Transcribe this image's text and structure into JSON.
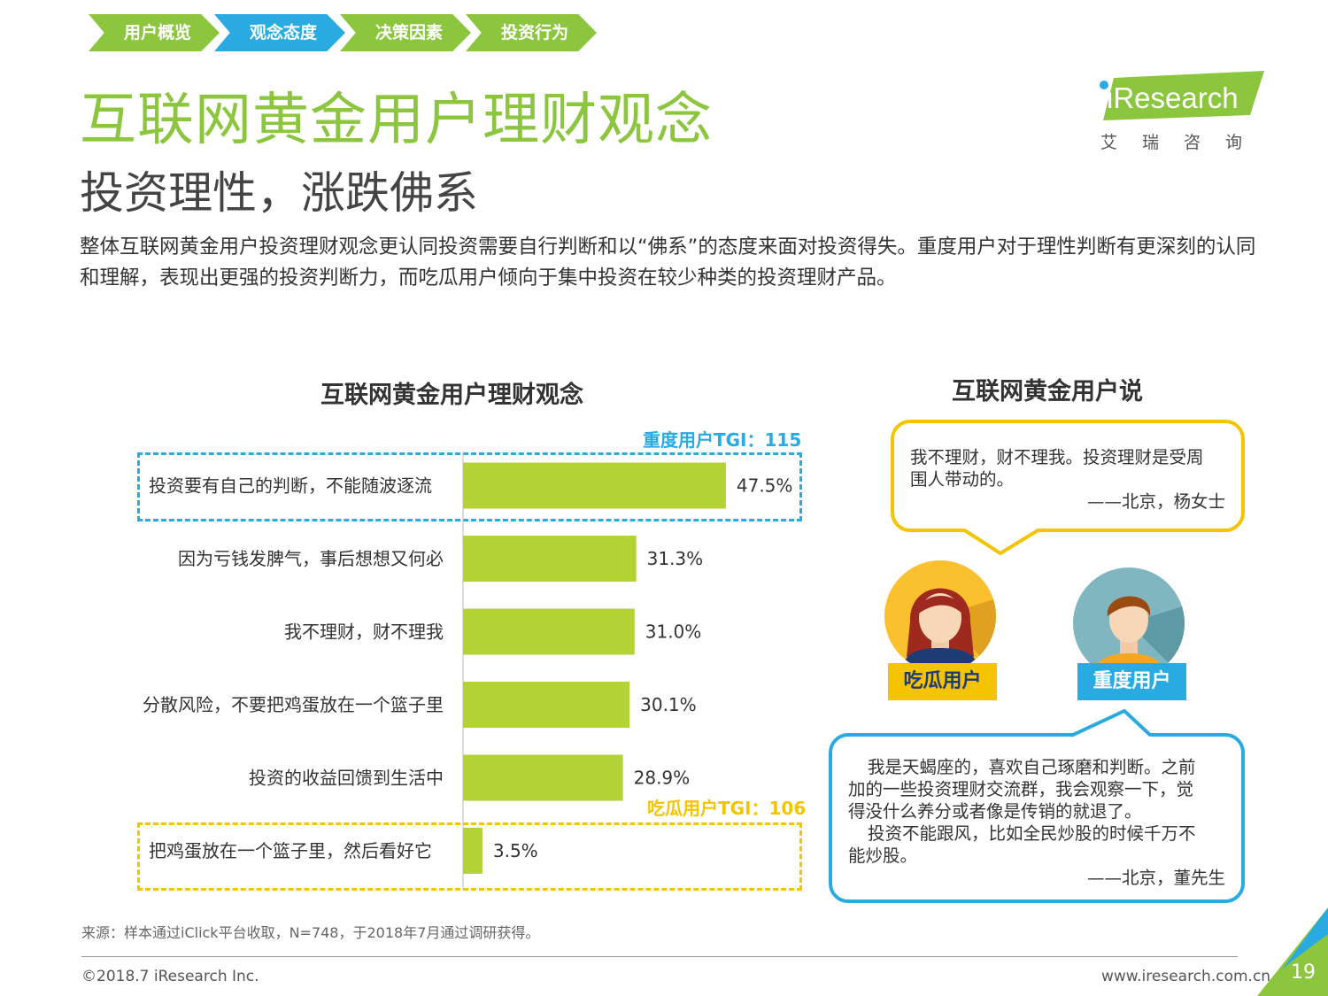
{
  "nav": {
    "tabs": [
      {
        "label": "用户概览",
        "color": "#8cc63f"
      },
      {
        "label": "观念态度",
        "color": "#29abe2"
      },
      {
        "label": "决策因素",
        "color": "#8cc63f"
      },
      {
        "label": "投资行为",
        "color": "#8cc63f"
      }
    ]
  },
  "header": {
    "title": "互联网黄金用户理财观念",
    "subtitle": "投资理性，涨跌佛系",
    "intro": "整体互联网黄金用户投资理财观念更认同投资需要自行判断和以“佛系”的态度来面对投资得失。重度用户对于理性判断有更深刻的认同和理解，表现出更强的投资判断力，而吃瓜用户倾向于集中投资在较少种类的投资理财产品。"
  },
  "logo": {
    "text": "iResearch",
    "cn": "艾瑞咨询"
  },
  "chart_data": {
    "type": "bar",
    "orientation": "horizontal",
    "title": "互联网黄金用户理财观念",
    "categories": [
      "投资要有自己的判断，不能随波逐流",
      "因为亏钱发脾气，事后想想又何必",
      "我不理财，财不理我",
      "分散风险，不要把鸡蛋放在一个篮子里",
      "投资的收益回馈到生活中",
      "把鸡蛋放在一个篮子里，然后看好它"
    ],
    "values": [
      47.5,
      31.3,
      31.0,
      30.1,
      28.9,
      3.5
    ],
    "value_labels": [
      "47.5%",
      "31.3%",
      "31.0%",
      "30.1%",
      "28.9%",
      "3.5%"
    ],
    "unit": "%",
    "xlim": [
      0,
      60
    ],
    "bar_color": "#b2d235",
    "annotations": [
      {
        "text": "重度用户TGI：115",
        "category_index": 0,
        "color": "#29abe2"
      },
      {
        "text": "吃瓜用户TGI：106",
        "category_index": 5,
        "color": "#f5c400"
      }
    ]
  },
  "people": {
    "title": "互联网黄金用户说",
    "quote1": {
      "lines": [
        "我不理财，财不理我。投资理财是受周",
        "围人带动的。"
      ],
      "attribution": "——北京，杨女士",
      "color": "#f5c400"
    },
    "quote2": {
      "lines": [
        "我是天蝎座的，喜欢自己琢磨和判断。之前",
        "加的一些投资理财交流群，我会观察一下，觉",
        "得没什么养分或者像是传销的就退了。",
        "投资不能跟风，比如全民炒股的时候千万不",
        "能炒股。"
      ],
      "attribution": "——北京，董先生",
      "color": "#29abe2"
    },
    "casual_label": "吃瓜用户",
    "heavy_label": "重度用户"
  },
  "footer": {
    "source": "来源：样本通过iClick平台收取，N=748，于2018年7月通过调研获得。",
    "copyright": "©2018.7 iResearch Inc.",
    "website": "www.iresearch.com.cn",
    "page": "19"
  }
}
